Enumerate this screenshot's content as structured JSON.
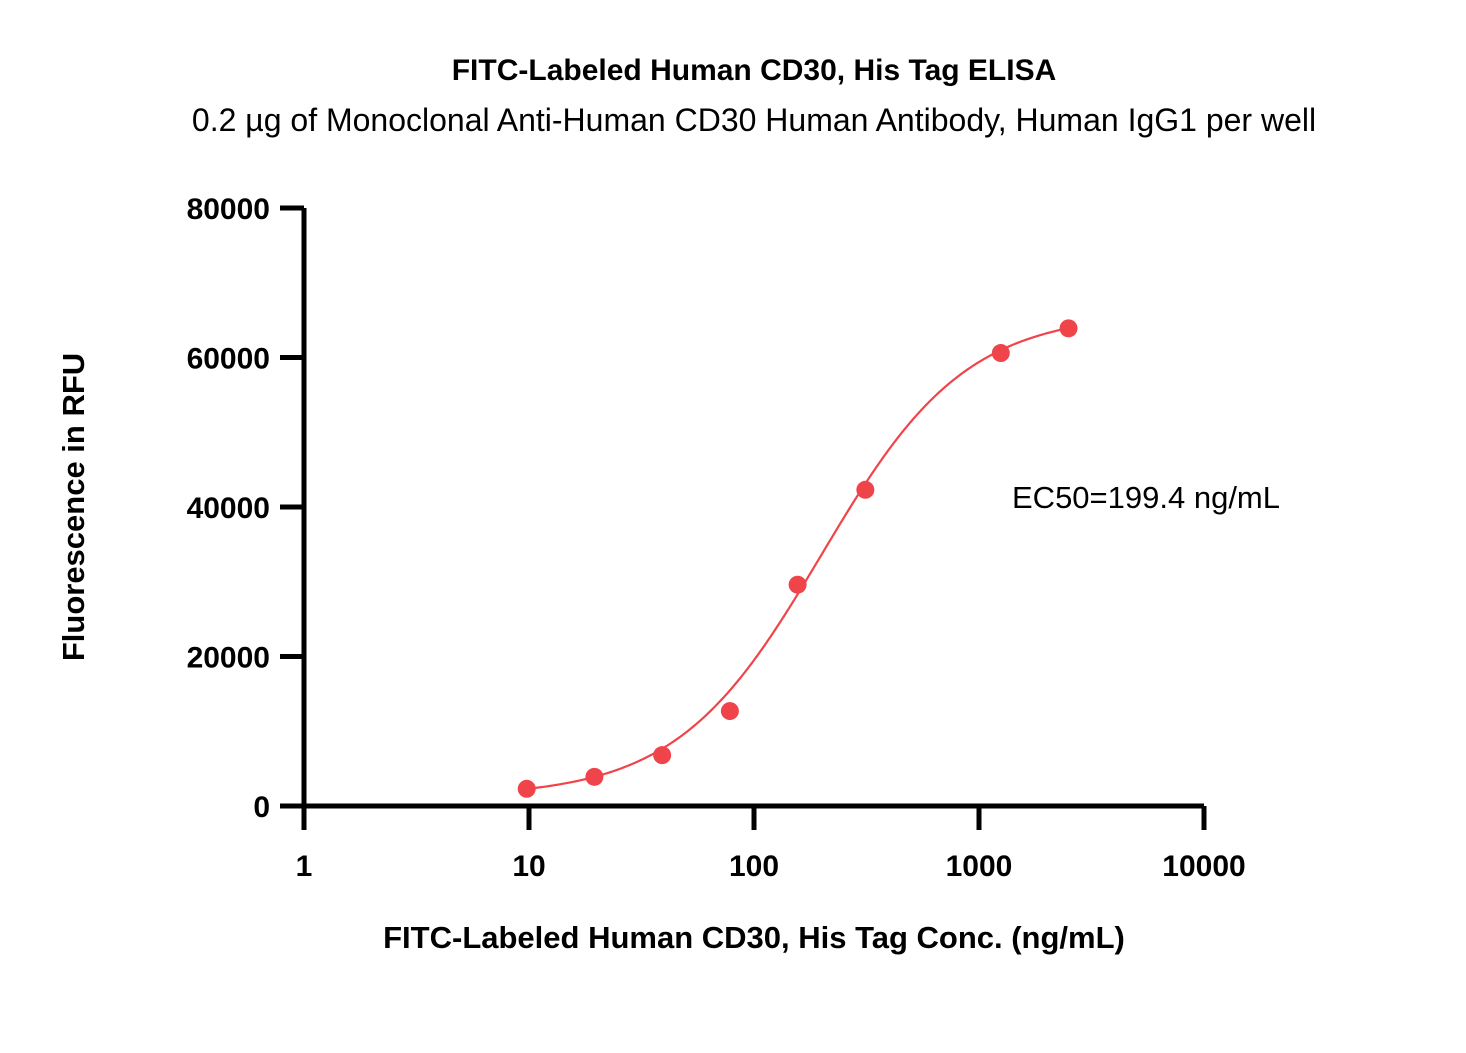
{
  "chart_data": {
    "type": "scatter",
    "title": "FITC-Labeled Human CD30, His Tag ELISA",
    "subtitle": "0.2 µg of Monoclonal Anti-Human CD30 Human Antibody, Human IgG1 per well",
    "xlabel": "FITC-Labeled Human CD30, His Tag Conc. (ng/mL)",
    "ylabel": "Fluorescence in RFU",
    "x_scale": "log",
    "xlim": [
      1,
      10000
    ],
    "ylim": [
      0,
      80000
    ],
    "x_ticks": [
      "1",
      "10",
      "100",
      "1000",
      "10000"
    ],
    "y_ticks": [
      "0",
      "20000",
      "40000",
      "60000",
      "80000"
    ],
    "grid": false,
    "series": [
      {
        "color": "#f0444b",
        "x": [
          9.77,
          19.53,
          39.06,
          78.13,
          156.25,
          312.5,
          1250,
          2500
        ],
        "y": [
          2300,
          3900,
          6800,
          12700,
          29600,
          42300,
          60600,
          63900
        ]
      }
    ],
    "fit_curve": {
      "model": "4PL",
      "bottom": 1200,
      "top": 66000,
      "ec50": 199.4,
      "hill": 1.35,
      "x_range": [
        9.77,
        2500
      ],
      "color": "#f0444b"
    },
    "annotation": "EC50=199.4  ng/mL"
  }
}
